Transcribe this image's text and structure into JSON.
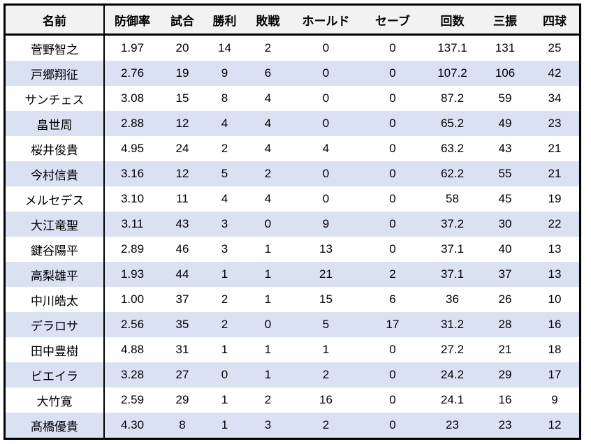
{
  "colors": {
    "header_bg": "#f2f2f2",
    "band_bg": "#d9e1f2",
    "border": "#000000",
    "text": "#000000"
  },
  "chart_data": {
    "type": "table",
    "columns": [
      "名前",
      "防御率",
      "試合",
      "勝利",
      "敗戦",
      "ホールド",
      "セーブ",
      "回数",
      "三振",
      "四球"
    ],
    "rows": [
      [
        "菅野智之",
        "1.97",
        "20",
        "14",
        "2",
        "0",
        "0",
        "137.1",
        "131",
        "25"
      ],
      [
        "戸郷翔征",
        "2.76",
        "19",
        "9",
        "6",
        "0",
        "0",
        "107.2",
        "106",
        "42"
      ],
      [
        "サンチェス",
        "3.08",
        "15",
        "8",
        "4",
        "0",
        "0",
        "87.2",
        "59",
        "34"
      ],
      [
        "畠世周",
        "2.88",
        "12",
        "4",
        "4",
        "0",
        "0",
        "65.2",
        "49",
        "23"
      ],
      [
        "桜井俊貴",
        "4.95",
        "24",
        "2",
        "4",
        "4",
        "0",
        "63.2",
        "43",
        "21"
      ],
      [
        "今村信貴",
        "3.16",
        "12",
        "5",
        "2",
        "0",
        "0",
        "62.2",
        "55",
        "21"
      ],
      [
        "メルセデス",
        "3.10",
        "11",
        "4",
        "4",
        "0",
        "0",
        "58",
        "45",
        "19"
      ],
      [
        "大江竜聖",
        "3.11",
        "43",
        "3",
        "0",
        "9",
        "0",
        "37.2",
        "30",
        "22"
      ],
      [
        "鍵谷陽平",
        "2.89",
        "46",
        "3",
        "1",
        "13",
        "0",
        "37.1",
        "40",
        "13"
      ],
      [
        "高梨雄平",
        "1.93",
        "44",
        "1",
        "1",
        "21",
        "2",
        "37.1",
        "37",
        "13"
      ],
      [
        "中川皓太",
        "1.00",
        "37",
        "2",
        "1",
        "15",
        "6",
        "36",
        "26",
        "10"
      ],
      [
        "デラロサ",
        "2.56",
        "35",
        "2",
        "0",
        "5",
        "17",
        "31.2",
        "28",
        "16"
      ],
      [
        "田中豊樹",
        "4.88",
        "31",
        "1",
        "1",
        "1",
        "0",
        "27.2",
        "21",
        "18"
      ],
      [
        "ビエイラ",
        "3.28",
        "27",
        "0",
        "1",
        "2",
        "0",
        "24.2",
        "29",
        "17"
      ],
      [
        "大竹寛",
        "2.59",
        "29",
        "1",
        "2",
        "16",
        "0",
        "24.1",
        "16",
        "9"
      ],
      [
        "髙橋優貴",
        "4.30",
        "8",
        "1",
        "3",
        "2",
        "0",
        "23",
        "23",
        "12"
      ]
    ]
  }
}
